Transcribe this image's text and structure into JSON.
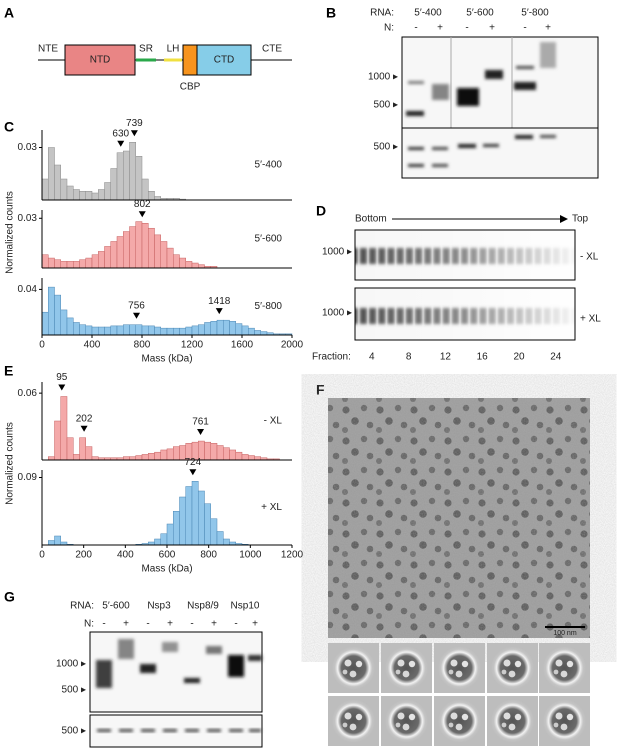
{
  "panel_a": {
    "letter": "A",
    "nte": "NTE",
    "ntd": "NTD",
    "sr": "SR",
    "lh": "LH",
    "ctd": "CTD",
    "cbp": "CBP",
    "cte": "CTE"
  },
  "panel_b": {
    "letter": "B",
    "rna_label": "RNA:",
    "rnas": [
      "5′-400",
      "5′-600",
      "5′-800"
    ],
    "n_label": "N:",
    "lanes": [
      "-",
      "+",
      "-",
      "+",
      "-",
      "+"
    ],
    "markers": [
      "1000 ▸",
      "500 ▸",
      "500 ▸"
    ]
  },
  "panel_c": {
    "letter": "C"
  },
  "panel_d": {
    "letter": "D",
    "bottom": "Bottom",
    "top": "Top",
    "markers": [
      "1000 ▸",
      "1000 ▸"
    ],
    "conditions": [
      "- XL",
      "+ XL"
    ],
    "fraction_label": "Fraction:",
    "fractions": [
      4,
      8,
      12,
      16,
      20,
      24
    ]
  },
  "panel_e": {
    "letter": "E"
  },
  "panel_f": {
    "letter": "F",
    "scale_bar": "100 nm"
  },
  "panel_g": {
    "letter": "G",
    "rna_label": "RNA:",
    "rnas": [
      "5′-600",
      "Nsp3",
      "Nsp8/9",
      "Nsp10"
    ],
    "n_label": "N:",
    "lanes": [
      "-",
      "+",
      "-",
      "+",
      "-",
      "+",
      "-",
      "+"
    ],
    "markers": [
      "1000 ▸",
      "500 ▸",
      "500 ▸"
    ]
  },
  "chart_data": [
    {
      "type": "histogram",
      "label": "5′-400",
      "color": "#c4c4c4",
      "edge": "#8a8a8a",
      "bins": [
        0,
        50,
        100,
        150,
        200,
        250,
        300,
        350,
        400,
        450,
        500,
        550,
        600,
        650,
        700,
        750,
        800,
        850,
        900,
        950,
        1000,
        1050,
        1100,
        1150,
        1200,
        1250,
        1300,
        1350,
        1400,
        1450,
        1500,
        1550,
        1600,
        1650,
        1700,
        1750,
        1800,
        1850,
        1900,
        1950,
        2000
      ],
      "counts": [
        0.012,
        0.03,
        0.02,
        0.012,
        0.008,
        0.006,
        0.005,
        0.005,
        0.004,
        0.006,
        0.01,
        0.018,
        0.027,
        0.028,
        0.033,
        0.025,
        0.012,
        0.005,
        0.002,
        0.001,
        0.001,
        0.001,
        0.0005,
        0,
        0,
        0,
        0,
        0,
        0,
        0,
        0,
        0,
        0,
        0,
        0,
        0,
        0,
        0,
        0,
        0
      ],
      "xlim": [
        0,
        2000
      ],
      "ylim": [
        0,
        0.04
      ],
      "yticks": [
        0.03
      ],
      "peaks": [
        630,
        739
      ]
    },
    {
      "type": "histogram",
      "label": "5′-600",
      "color": "#f4a9a9",
      "edge": "#c56060",
      "ylabel": "Normalized counts",
      "bins": [
        0,
        50,
        100,
        150,
        200,
        250,
        300,
        350,
        400,
        450,
        500,
        550,
        600,
        650,
        700,
        750,
        800,
        850,
        900,
        950,
        1000,
        1050,
        1100,
        1150,
        1200,
        1250,
        1300,
        1350,
        1400,
        1450,
        1500,
        1550,
        1600,
        1650,
        1700,
        1750,
        1800,
        1850,
        1900,
        1950,
        2000
      ],
      "counts": [
        0.008,
        0.006,
        0.005,
        0.004,
        0.004,
        0.004,
        0.005,
        0.006,
        0.008,
        0.01,
        0.013,
        0.016,
        0.019,
        0.022,
        0.025,
        0.028,
        0.027,
        0.024,
        0.02,
        0.016,
        0.012,
        0.008,
        0.006,
        0.004,
        0.003,
        0.002,
        0.001,
        0.001,
        0,
        0,
        0,
        0,
        0,
        0,
        0,
        0,
        0,
        0,
        0,
        0
      ],
      "xlim": [
        0,
        2000
      ],
      "ylim": [
        0,
        0.035
      ],
      "yticks": [
        0.03
      ],
      "peaks": [
        802
      ]
    },
    {
      "type": "histogram",
      "label": "5′-800",
      "color": "#91c6ea",
      "edge": "#4a86b4",
      "xlabel": "Mass (kDa)",
      "bins": [
        0,
        50,
        100,
        150,
        200,
        250,
        300,
        350,
        400,
        450,
        500,
        550,
        600,
        650,
        700,
        750,
        800,
        850,
        900,
        950,
        1000,
        1050,
        1100,
        1150,
        1200,
        1250,
        1300,
        1350,
        1400,
        1450,
        1500,
        1550,
        1600,
        1650,
        1700,
        1750,
        1800,
        1850,
        1900,
        1950,
        2000
      ],
      "counts": [
        0.02,
        0.042,
        0.035,
        0.022,
        0.015,
        0.011,
        0.009,
        0.008,
        0.007,
        0.007,
        0.007,
        0.008,
        0.008,
        0.009,
        0.009,
        0.009,
        0.008,
        0.008,
        0.007,
        0.006,
        0.006,
        0.006,
        0.006,
        0.007,
        0.008,
        0.009,
        0.011,
        0.012,
        0.013,
        0.013,
        0.012,
        0.01,
        0.008,
        0.006,
        0.004,
        0.003,
        0.002,
        0.001,
        0.001,
        0.001
      ],
      "xlim": [
        0,
        2000
      ],
      "xticks": [
        0,
        400,
        800,
        1200,
        1600,
        2000
      ],
      "ylim": [
        0,
        0.05
      ],
      "yticks": [
        0.04
      ],
      "peaks": [
        756,
        1418
      ]
    },
    {
      "type": "histogram",
      "label": "- XL",
      "color": "#f4a9a9",
      "edge": "#c56060",
      "ylabel": "Normalized counts",
      "bins": [
        0,
        30,
        60,
        90,
        120,
        150,
        180,
        210,
        240,
        270,
        300,
        330,
        360,
        390,
        420,
        450,
        480,
        510,
        540,
        570,
        600,
        630,
        660,
        690,
        720,
        750,
        780,
        810,
        840,
        870,
        900,
        930,
        960,
        990,
        1020,
        1050,
        1080,
        1110,
        1140,
        1170,
        1200
      ],
      "counts": [
        0,
        0.003,
        0.035,
        0.057,
        0.02,
        0.005,
        0.02,
        0.012,
        0.003,
        0.002,
        0.002,
        0.002,
        0.002,
        0.003,
        0.003,
        0.004,
        0.005,
        0.006,
        0.007,
        0.009,
        0.01,
        0.012,
        0.013,
        0.015,
        0.016,
        0.017,
        0.016,
        0.015,
        0.013,
        0.011,
        0.009,
        0.007,
        0.005,
        0.004,
        0.003,
        0.002,
        0.001,
        0.001,
        0,
        0
      ],
      "xlim": [
        0,
        1200
      ],
      "ylim": [
        0,
        0.07
      ],
      "yticks": [
        0.06
      ],
      "peaks": [
        95,
        202,
        761
      ]
    },
    {
      "type": "histogram",
      "label": "+ XL",
      "color": "#91c6ea",
      "edge": "#4a86b4",
      "xlabel": "Mass (kDa)",
      "bins": [
        0,
        30,
        60,
        90,
        120,
        150,
        180,
        210,
        240,
        270,
        300,
        330,
        360,
        390,
        420,
        450,
        480,
        510,
        540,
        570,
        600,
        630,
        660,
        690,
        720,
        750,
        780,
        810,
        840,
        870,
        900,
        930,
        960,
        990,
        1020,
        1050,
        1080,
        1110,
        1140,
        1170,
        1200
      ],
      "counts": [
        0,
        0.006,
        0.012,
        0.004,
        0.001,
        0,
        0,
        0,
        0,
        0,
        0,
        0,
        0,
        0,
        0,
        0.001,
        0.002,
        0.004,
        0.008,
        0.015,
        0.028,
        0.045,
        0.064,
        0.078,
        0.085,
        0.072,
        0.055,
        0.035,
        0.018,
        0.008,
        0.004,
        0.002,
        0.001,
        0,
        0,
        0,
        0,
        0,
        0,
        0
      ],
      "xlim": [
        0,
        1200
      ],
      "xticks": [
        0,
        200,
        400,
        600,
        800,
        1000,
        1200
      ],
      "ylim": [
        0,
        0.1
      ],
      "yticks": [
        0.09
      ],
      "peaks": [
        724
      ]
    }
  ]
}
